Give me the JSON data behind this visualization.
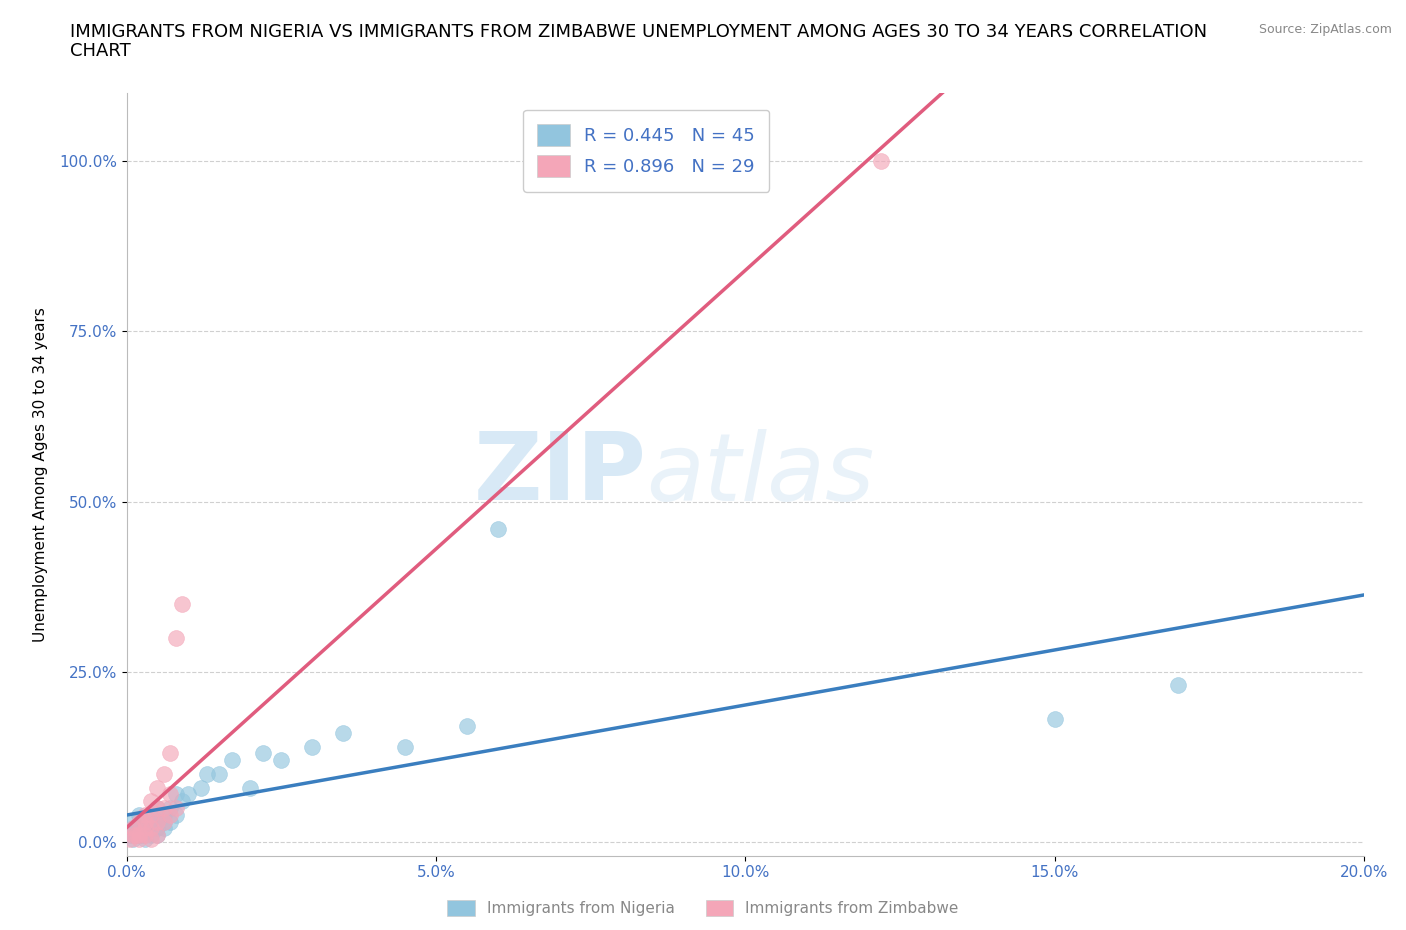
{
  "title": "IMMIGRANTS FROM NIGERIA VS IMMIGRANTS FROM ZIMBABWE UNEMPLOYMENT AMONG AGES 30 TO 34 YEARS CORRELATION\nCHART",
  "source": "Source: ZipAtlas.com",
  "ylabel": "Unemployment Among Ages 30 to 34 years",
  "xlabel_nigeria": "Immigrants from Nigeria",
  "xlabel_zimbabwe": "Immigrants from Zimbabwe",
  "xlim": [
    0.0,
    0.2
  ],
  "ylim": [
    -0.02,
    1.1
  ],
  "yticks": [
    0.0,
    0.25,
    0.5,
    0.75,
    1.0
  ],
  "ytick_labels": [
    "0.0%",
    "25.0%",
    "50.0%",
    "75.0%",
    "100.0%"
  ],
  "xticks": [
    0.0,
    0.05,
    0.1,
    0.15,
    0.2
  ],
  "xtick_labels": [
    "0.0%",
    "5.0%",
    "10.0%",
    "15.0%",
    "20.0%"
  ],
  "nigeria_color": "#92c5de",
  "nigeria_color_line": "#3a7ebf",
  "zimbabwe_color": "#f4a6b8",
  "zimbabwe_color_line": "#e05c7e",
  "R_nigeria": 0.445,
  "N_nigeria": 45,
  "R_zimbabwe": 0.896,
  "N_zimbabwe": 29,
  "watermark_zip": "ZIP",
  "watermark_atlas": "atlas",
  "nigeria_x": [
    0.0005,
    0.001,
    0.001,
    0.001,
    0.0015,
    0.0015,
    0.002,
    0.002,
    0.002,
    0.0025,
    0.003,
    0.003,
    0.003,
    0.003,
    0.004,
    0.004,
    0.004,
    0.004,
    0.005,
    0.005,
    0.005,
    0.005,
    0.006,
    0.006,
    0.006,
    0.007,
    0.007,
    0.008,
    0.008,
    0.009,
    0.01,
    0.012,
    0.013,
    0.015,
    0.017,
    0.02,
    0.022,
    0.025,
    0.03,
    0.035,
    0.045,
    0.055,
    0.06,
    0.15,
    0.17
  ],
  "nigeria_y": [
    0.01,
    0.005,
    0.02,
    0.03,
    0.01,
    0.02,
    0.01,
    0.02,
    0.04,
    0.01,
    0.005,
    0.01,
    0.02,
    0.03,
    0.01,
    0.02,
    0.03,
    0.04,
    0.01,
    0.02,
    0.03,
    0.05,
    0.02,
    0.03,
    0.04,
    0.03,
    0.05,
    0.04,
    0.07,
    0.06,
    0.07,
    0.08,
    0.1,
    0.1,
    0.12,
    0.08,
    0.13,
    0.12,
    0.14,
    0.16,
    0.14,
    0.17,
    0.46,
    0.18,
    0.23
  ],
  "zimbabwe_x": [
    0.0005,
    0.001,
    0.001,
    0.0015,
    0.002,
    0.002,
    0.002,
    0.003,
    0.003,
    0.003,
    0.003,
    0.004,
    0.004,
    0.004,
    0.004,
    0.005,
    0.005,
    0.005,
    0.005,
    0.006,
    0.006,
    0.006,
    0.007,
    0.007,
    0.007,
    0.008,
    0.008,
    0.009,
    0.122
  ],
  "zimbabwe_y": [
    0.005,
    0.01,
    0.02,
    0.01,
    0.005,
    0.01,
    0.03,
    0.01,
    0.02,
    0.03,
    0.04,
    0.005,
    0.02,
    0.04,
    0.06,
    0.01,
    0.03,
    0.05,
    0.08,
    0.03,
    0.05,
    0.1,
    0.04,
    0.07,
    0.13,
    0.05,
    0.3,
    0.35,
    1.0
  ],
  "background_color": "#ffffff",
  "grid_color": "#d0d0d0",
  "title_fontsize": 13,
  "axis_label_fontsize": 11,
  "tick_fontsize": 11,
  "legend_fontsize": 13
}
